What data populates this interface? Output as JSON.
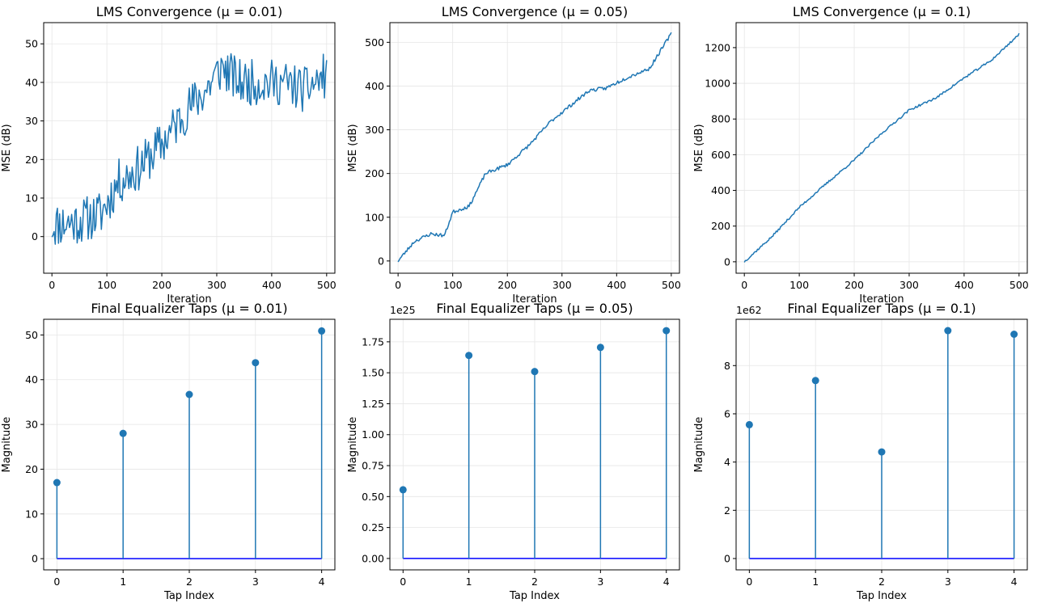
{
  "colors": {
    "series": "#1f77b4",
    "baseline": "#0000ff",
    "grid": "#e6e6e6"
  },
  "chart_data": [
    {
      "type": "line",
      "title": "LMS Convergence (μ = 0.01)",
      "xlabel": "Iteration",
      "ylabel": "MSE (dB)",
      "xlim": [
        -15,
        515
      ],
      "ylim": [
        -9.5,
        55.5
      ],
      "xticks": [
        0,
        100,
        200,
        300,
        400,
        500
      ],
      "yticks": [
        0,
        10,
        20,
        30,
        40,
        50
      ],
      "grid": true,
      "series": [
        {
          "x": [
            0,
            100,
            200,
            300,
            400,
            500
          ],
          "values": [
            3,
            8,
            22,
            40,
            40,
            42
          ]
        }
      ],
      "noise": {
        "amp": 6,
        "seed": 11,
        "anchors": [
          [
            0,
            3
          ],
          [
            50,
            4
          ],
          [
            90,
            6
          ],
          [
            120,
            14
          ],
          [
            160,
            18
          ],
          [
            200,
            24
          ],
          [
            240,
            32
          ],
          [
            280,
            38
          ],
          [
            310,
            44
          ],
          [
            340,
            40
          ],
          [
            380,
            40
          ],
          [
            420,
            40
          ],
          [
            460,
            38
          ],
          [
            500,
            42
          ]
        ]
      }
    },
    {
      "type": "line",
      "title": "LMS Convergence (μ = 0.05)",
      "xlabel": "Iteration",
      "ylabel": "MSE (dB)",
      "xlim": [
        -15,
        515
      ],
      "ylim": [
        -28,
        545
      ],
      "xticks": [
        0,
        100,
        200,
        300,
        400,
        500
      ],
      "yticks": [
        0,
        100,
        200,
        300,
        400,
        500
      ],
      "grid": true,
      "series": [
        {
          "x": [
            0,
            100,
            200,
            300,
            400,
            500
          ],
          "values": [
            0,
            115,
            220,
            350,
            420,
            520
          ]
        }
      ],
      "noise": {
        "amp": 4,
        "seed": 23,
        "anchors": [
          [
            0,
            0
          ],
          [
            30,
            45
          ],
          [
            60,
            62
          ],
          [
            85,
            58
          ],
          [
            100,
            112
          ],
          [
            130,
            125
          ],
          [
            160,
            200
          ],
          [
            200,
            220
          ],
          [
            240,
            265
          ],
          [
            280,
            320
          ],
          [
            310,
            350
          ],
          [
            350,
            390
          ],
          [
            380,
            395
          ],
          [
            420,
            420
          ],
          [
            460,
            440
          ],
          [
            500,
            520
          ]
        ]
      }
    },
    {
      "type": "line",
      "title": "LMS Convergence (μ = 0.1)",
      "xlabel": "Iteration",
      "ylabel": "MSE (dB)",
      "xlim": [
        -15,
        515
      ],
      "ylim": [
        -64,
        1340
      ],
      "xticks": [
        0,
        100,
        200,
        300,
        400,
        500
      ],
      "yticks": [
        0,
        200,
        400,
        600,
        800,
        1000,
        1200
      ],
      "grid": true,
      "series": [
        {
          "x": [
            0,
            100,
            200,
            300,
            400,
            500
          ],
          "values": [
            0,
            310,
            570,
            840,
            1020,
            1275
          ]
        }
      ],
      "noise": {
        "amp": 6,
        "seed": 37,
        "anchors": [
          [
            0,
            0
          ],
          [
            50,
            140
          ],
          [
            100,
            305
          ],
          [
            150,
            440
          ],
          [
            200,
            570
          ],
          [
            250,
            720
          ],
          [
            300,
            850
          ],
          [
            350,
            920
          ],
          [
            400,
            1030
          ],
          [
            450,
            1130
          ],
          [
            500,
            1275
          ]
        ]
      }
    },
    {
      "type": "stem",
      "title": "Final Equalizer Taps (μ = 0.01)",
      "xlabel": "Tap Index",
      "ylabel": "Magnitude",
      "multiplier": "",
      "categories": [
        0,
        1,
        2,
        3,
        4
      ],
      "values": [
        17,
        28,
        36.7,
        43.8,
        50.9
      ],
      "xlim": [
        -0.2,
        4.2
      ],
      "ylim": [
        -2.5,
        53.5
      ],
      "xticks": [
        0,
        1,
        2,
        3,
        4
      ],
      "yticks": [
        0,
        10,
        20,
        30,
        40,
        50
      ],
      "grid": true
    },
    {
      "type": "stem",
      "title": "Final Equalizer Taps (μ = 0.05)",
      "xlabel": "Tap Index",
      "ylabel": "Magnitude",
      "multiplier": "1e25",
      "categories": [
        0,
        1,
        2,
        3,
        4
      ],
      "values": [
        0.555,
        1.64,
        1.51,
        1.705,
        1.84
      ],
      "xlim": [
        -0.2,
        4.2
      ],
      "ylim": [
        -0.092,
        1.932
      ],
      "xticks": [
        0,
        1,
        2,
        3,
        4
      ],
      "yticks": [
        0.0,
        0.25,
        0.5,
        0.75,
        1.0,
        1.25,
        1.5,
        1.75
      ],
      "ytick_labels": [
        "0.00",
        "0.25",
        "0.50",
        "0.75",
        "1.00",
        "1.25",
        "1.50",
        "1.75"
      ],
      "grid": true
    },
    {
      "type": "stem",
      "title": "Final Equalizer Taps (μ = 0.1)",
      "xlabel": "Tap Index",
      "ylabel": "Magnitude",
      "multiplier": "1e62",
      "categories": [
        0,
        1,
        2,
        3,
        4
      ],
      "values": [
        5.55,
        7.38,
        4.42,
        9.45,
        9.3
      ],
      "xlim": [
        -0.2,
        4.2
      ],
      "ylim": [
        -0.47,
        9.92
      ],
      "xticks": [
        0,
        1,
        2,
        3,
        4
      ],
      "yticks": [
        0,
        2,
        4,
        6,
        8
      ],
      "grid": true
    }
  ]
}
